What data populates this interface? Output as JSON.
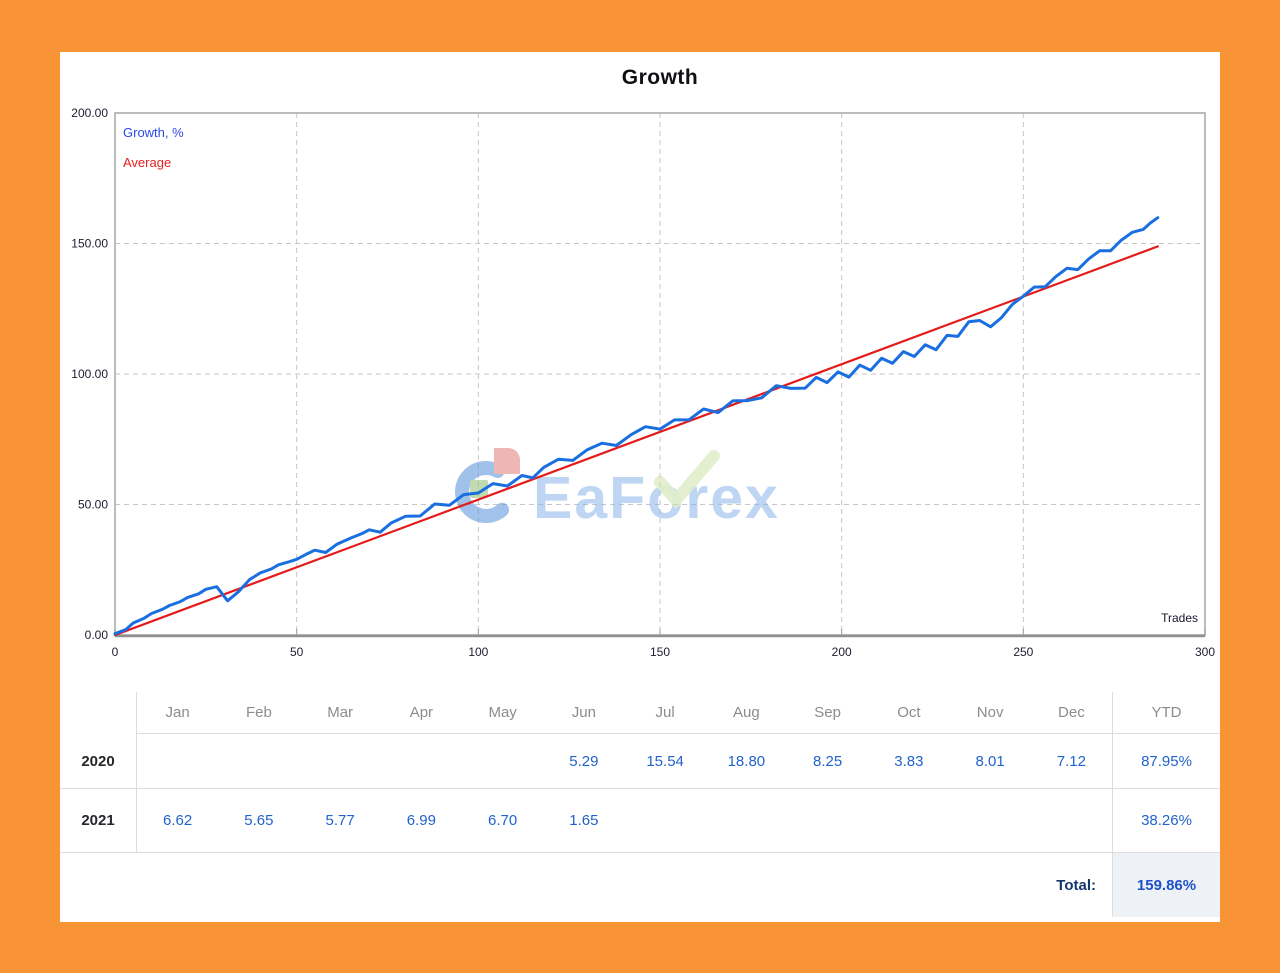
{
  "chart": {
    "title": "Growth",
    "legend": {
      "growth": "Growth, %",
      "average": "Average"
    },
    "axis": {
      "x_label": "Trades",
      "x_ticks": [
        0,
        50,
        100,
        150,
        200,
        250,
        300
      ],
      "y_ticks": [
        "0.00",
        "50.00",
        "100.00",
        "150.00",
        "200.00"
      ]
    },
    "colors": {
      "growth_line": "#1a6fe0",
      "average_line": "#e51a1a",
      "grid": "#c6c6c6",
      "border": "#ababab",
      "axis_text": "#1c1c30",
      "frame_orange": "#f89435"
    }
  },
  "watermark": {
    "text": "EaForex",
    "text_color": "#8ab4ea",
    "check_color": "#c9e0a0",
    "logo_blue": "#5490d8",
    "logo_red": "#e37b7b",
    "logo_green": "#8fbf72"
  },
  "chart_data": {
    "type": "line",
    "title": "Growth",
    "xlabel": "Trades",
    "ylabel": "Growth, %",
    "xlim": [
      0,
      300
    ],
    "ylim": [
      0,
      200
    ],
    "grid": true,
    "legend_position": "top-left",
    "series": [
      {
        "name": "Growth, %",
        "color": "#1a6fe0",
        "points": [
          [
            0,
            0.5
          ],
          [
            3,
            2.1
          ],
          [
            5,
            4.6
          ],
          [
            8,
            6.4
          ],
          [
            10,
            8.2
          ],
          [
            13,
            9.8
          ],
          [
            15,
            11.3
          ],
          [
            18,
            12.8
          ],
          [
            20,
            14.4
          ],
          [
            23,
            15.8
          ],
          [
            25,
            17.5
          ],
          [
            28,
            18.5
          ],
          [
            31,
            13.1
          ],
          [
            34,
            16.6
          ],
          [
            37,
            21.2
          ],
          [
            40,
            23.8
          ],
          [
            43,
            25.3
          ],
          [
            45,
            26.9
          ],
          [
            48,
            28.1
          ],
          [
            50,
            29.0
          ],
          [
            53,
            31.2
          ],
          [
            55,
            32.5
          ],
          [
            58,
            31.6
          ],
          [
            61,
            34.7
          ],
          [
            65,
            37.2
          ],
          [
            68,
            38.9
          ],
          [
            70,
            40.3
          ],
          [
            73,
            39.4
          ],
          [
            76,
            42.9
          ],
          [
            80,
            45.5
          ],
          [
            84,
            45.6
          ],
          [
            88,
            50.2
          ],
          [
            92,
            49.7
          ],
          [
            96,
            53.8
          ],
          [
            100,
            54.4
          ],
          [
            104,
            58.0
          ],
          [
            108,
            57.1
          ],
          [
            112,
            61.1
          ],
          [
            115,
            60.2
          ],
          [
            118,
            64.2
          ],
          [
            122,
            67.3
          ],
          [
            126,
            66.9
          ],
          [
            130,
            71.0
          ],
          [
            134,
            73.5
          ],
          [
            138,
            72.6
          ],
          [
            142,
            76.7
          ],
          [
            146,
            79.8
          ],
          [
            150,
            78.9
          ],
          [
            154,
            82.4
          ],
          [
            158,
            82.5
          ],
          [
            162,
            86.6
          ],
          [
            166,
            85.2
          ],
          [
            170,
            89.7
          ],
          [
            174,
            89.8
          ],
          [
            178,
            90.9
          ],
          [
            182,
            95.5
          ],
          [
            186,
            94.5
          ],
          [
            190,
            94.6
          ],
          [
            193,
            98.7
          ],
          [
            196,
            96.7
          ],
          [
            199,
            100.8
          ],
          [
            202,
            98.8
          ],
          [
            205,
            103.4
          ],
          [
            208,
            101.4
          ],
          [
            211,
            106.0
          ],
          [
            214,
            104.1
          ],
          [
            217,
            108.6
          ],
          [
            220,
            106.7
          ],
          [
            223,
            111.2
          ],
          [
            226,
            109.3
          ],
          [
            229,
            114.8
          ],
          [
            232,
            114.4
          ],
          [
            235,
            120.0
          ],
          [
            238,
            120.5
          ],
          [
            241,
            118.1
          ],
          [
            244,
            121.6
          ],
          [
            247,
            126.7
          ],
          [
            250,
            129.8
          ],
          [
            253,
            133.3
          ],
          [
            256,
            133.4
          ],
          [
            259,
            137.4
          ],
          [
            262,
            140.5
          ],
          [
            265,
            140.0
          ],
          [
            268,
            144.1
          ],
          [
            271,
            147.2
          ],
          [
            274,
            147.2
          ],
          [
            277,
            151.3
          ],
          [
            280,
            154.3
          ],
          [
            283,
            155.4
          ],
          [
            285,
            157.9
          ],
          [
            287,
            159.9
          ]
        ]
      },
      {
        "name": "Average",
        "color": "#e51a1a",
        "points": [
          [
            0,
            0
          ],
          [
            287,
            148.9
          ]
        ]
      }
    ]
  },
  "table": {
    "columns": [
      "Jan",
      "Feb",
      "Mar",
      "Apr",
      "May",
      "Jun",
      "Jul",
      "Aug",
      "Sep",
      "Oct",
      "Nov",
      "Dec",
      "YTD"
    ],
    "rows": [
      {
        "year": "2020",
        "values": [
          "",
          "",
          "",
          "",
          "",
          "5.29",
          "15.54",
          "18.80",
          "8.25",
          "3.83",
          "8.01",
          "7.12"
        ],
        "ytd": "87.95%"
      },
      {
        "year": "2021",
        "values": [
          "6.62",
          "5.65",
          "5.77",
          "6.99",
          "6.70",
          "1.65",
          "",
          "",
          "",
          "",
          "",
          ""
        ],
        "ytd": "38.26%"
      }
    ],
    "total_label": "Total:",
    "total_value": "159.86%"
  }
}
